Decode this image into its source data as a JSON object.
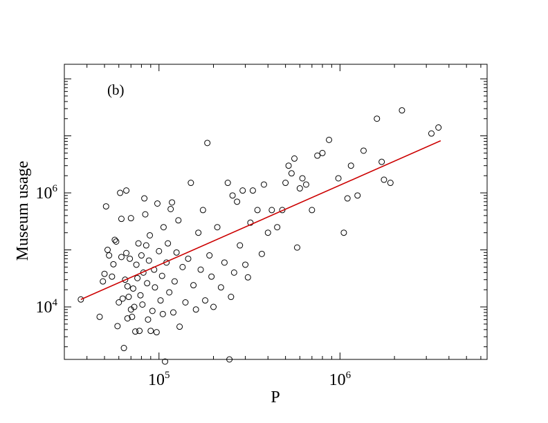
{
  "chart_data": {
    "type": "scatter",
    "panel_label": "(b)",
    "xlabel": "P",
    "ylabel": "Museum usage",
    "x_scale": "log",
    "y_scale": "log",
    "xlim": [
      30000,
      6500000
    ],
    "ylim": [
      1200,
      180000000
    ],
    "x_ticks": [
      {
        "value": 100000,
        "base": "10",
        "exp": "5"
      },
      {
        "value": 1000000,
        "base": "10",
        "exp": "6"
      }
    ],
    "y_ticks": [
      {
        "value": 10000,
        "base": "10",
        "exp": "4"
      },
      {
        "value": 1000000,
        "base": "10",
        "exp": "6"
      }
    ],
    "colors": {
      "marker_edge": "#000000",
      "fit_line": "#cc0000"
    },
    "fit_line": {
      "x": [
        37000,
        3600000
      ],
      "y": [
        13500,
        8200000
      ]
    },
    "series": [
      {
        "marker": "open-circle",
        "points": [
          [
            37000,
            13500
          ],
          [
            47000,
            6700
          ],
          [
            49000,
            28000
          ],
          [
            50000,
            38000
          ],
          [
            51000,
            580000
          ],
          [
            52000,
            100000
          ],
          [
            53000,
            80000
          ],
          [
            55000,
            34000
          ],
          [
            56000,
            56000
          ],
          [
            57000,
            150000
          ],
          [
            58000,
            140000
          ],
          [
            59000,
            4600
          ],
          [
            60000,
            12000
          ],
          [
            61000,
            1000000
          ],
          [
            62000,
            75000
          ],
          [
            62000,
            350000
          ],
          [
            63000,
            14000
          ],
          [
            64000,
            1900
          ],
          [
            65000,
            30000
          ],
          [
            66000,
            88000
          ],
          [
            66000,
            1100000
          ],
          [
            67000,
            6300
          ],
          [
            67000,
            23000
          ],
          [
            68000,
            15000
          ],
          [
            69000,
            70000
          ],
          [
            70000,
            9000
          ],
          [
            70000,
            360000
          ],
          [
            71000,
            6700
          ],
          [
            72000,
            21000
          ],
          [
            73000,
            10000
          ],
          [
            74000,
            3700
          ],
          [
            75000,
            55000
          ],
          [
            76000,
            32000
          ],
          [
            77000,
            130000
          ],
          [
            78000,
            3800
          ],
          [
            79000,
            16000
          ],
          [
            80000,
            80000
          ],
          [
            81000,
            11000
          ],
          [
            82000,
            40000
          ],
          [
            83000,
            800000
          ],
          [
            84000,
            420000
          ],
          [
            85000,
            120000
          ],
          [
            86000,
            26000
          ],
          [
            87000,
            6000
          ],
          [
            88000,
            65000
          ],
          [
            89000,
            180000
          ],
          [
            90000,
            3800
          ],
          [
            92000,
            8500
          ],
          [
            94000,
            45000
          ],
          [
            95000,
            22000
          ],
          [
            97000,
            3600
          ],
          [
            98000,
            650000
          ],
          [
            100000,
            95000
          ],
          [
            102000,
            13000
          ],
          [
            104000,
            35000
          ],
          [
            105000,
            7500
          ],
          [
            106000,
            250000
          ],
          [
            108000,
            1100
          ],
          [
            110000,
            60000
          ],
          [
            112000,
            130000
          ],
          [
            114000,
            18000
          ],
          [
            116000,
            520000
          ],
          [
            118000,
            680000
          ],
          [
            120000,
            8000
          ],
          [
            122000,
            28000
          ],
          [
            125000,
            90000
          ],
          [
            128000,
            330000
          ],
          [
            130000,
            4500
          ],
          [
            135000,
            50000
          ],
          [
            140000,
            12000
          ],
          [
            145000,
            70000
          ],
          [
            150000,
            1500000
          ],
          [
            155000,
            24000
          ],
          [
            160000,
            9000
          ],
          [
            165000,
            200000
          ],
          [
            170000,
            45000
          ],
          [
            175000,
            500000
          ],
          [
            180000,
            13000
          ],
          [
            185000,
            7500000
          ],
          [
            190000,
            80000
          ],
          [
            195000,
            34000
          ],
          [
            200000,
            10000
          ],
          [
            210000,
            250000
          ],
          [
            220000,
            22000
          ],
          [
            230000,
            60000
          ],
          [
            240000,
            1500000
          ],
          [
            245000,
            1200
          ],
          [
            250000,
            15000
          ],
          [
            255000,
            900000
          ],
          [
            260000,
            40000
          ],
          [
            270000,
            700000
          ],
          [
            280000,
            120000
          ],
          [
            290000,
            1100000
          ],
          [
            300000,
            55000
          ],
          [
            310000,
            33000
          ],
          [
            320000,
            300000
          ],
          [
            330000,
            1100000
          ],
          [
            350000,
            500000
          ],
          [
            370000,
            85000
          ],
          [
            380000,
            1400000
          ],
          [
            400000,
            200000
          ],
          [
            420000,
            500000
          ],
          [
            450000,
            250000
          ],
          [
            480000,
            500000
          ],
          [
            500000,
            1500000
          ],
          [
            520000,
            3000000
          ],
          [
            540000,
            2200000
          ],
          [
            560000,
            4000000
          ],
          [
            580000,
            110000
          ],
          [
            600000,
            1200000
          ],
          [
            620000,
            1800000
          ],
          [
            650000,
            1400000
          ],
          [
            700000,
            500000
          ],
          [
            750000,
            4500000
          ],
          [
            800000,
            5000000
          ],
          [
            870000,
            8500000
          ],
          [
            980000,
            1800000
          ],
          [
            1050000,
            200000
          ],
          [
            1100000,
            800000
          ],
          [
            1150000,
            3000000
          ],
          [
            1250000,
            900000
          ],
          [
            1350000,
            5500000
          ],
          [
            1600000,
            20000000
          ],
          [
            1700000,
            3500000
          ],
          [
            1750000,
            1700000
          ],
          [
            1900000,
            1500000
          ],
          [
            2200000,
            28000000
          ],
          [
            3200000,
            11000000
          ],
          [
            3500000,
            14000000
          ]
        ]
      }
    ]
  }
}
